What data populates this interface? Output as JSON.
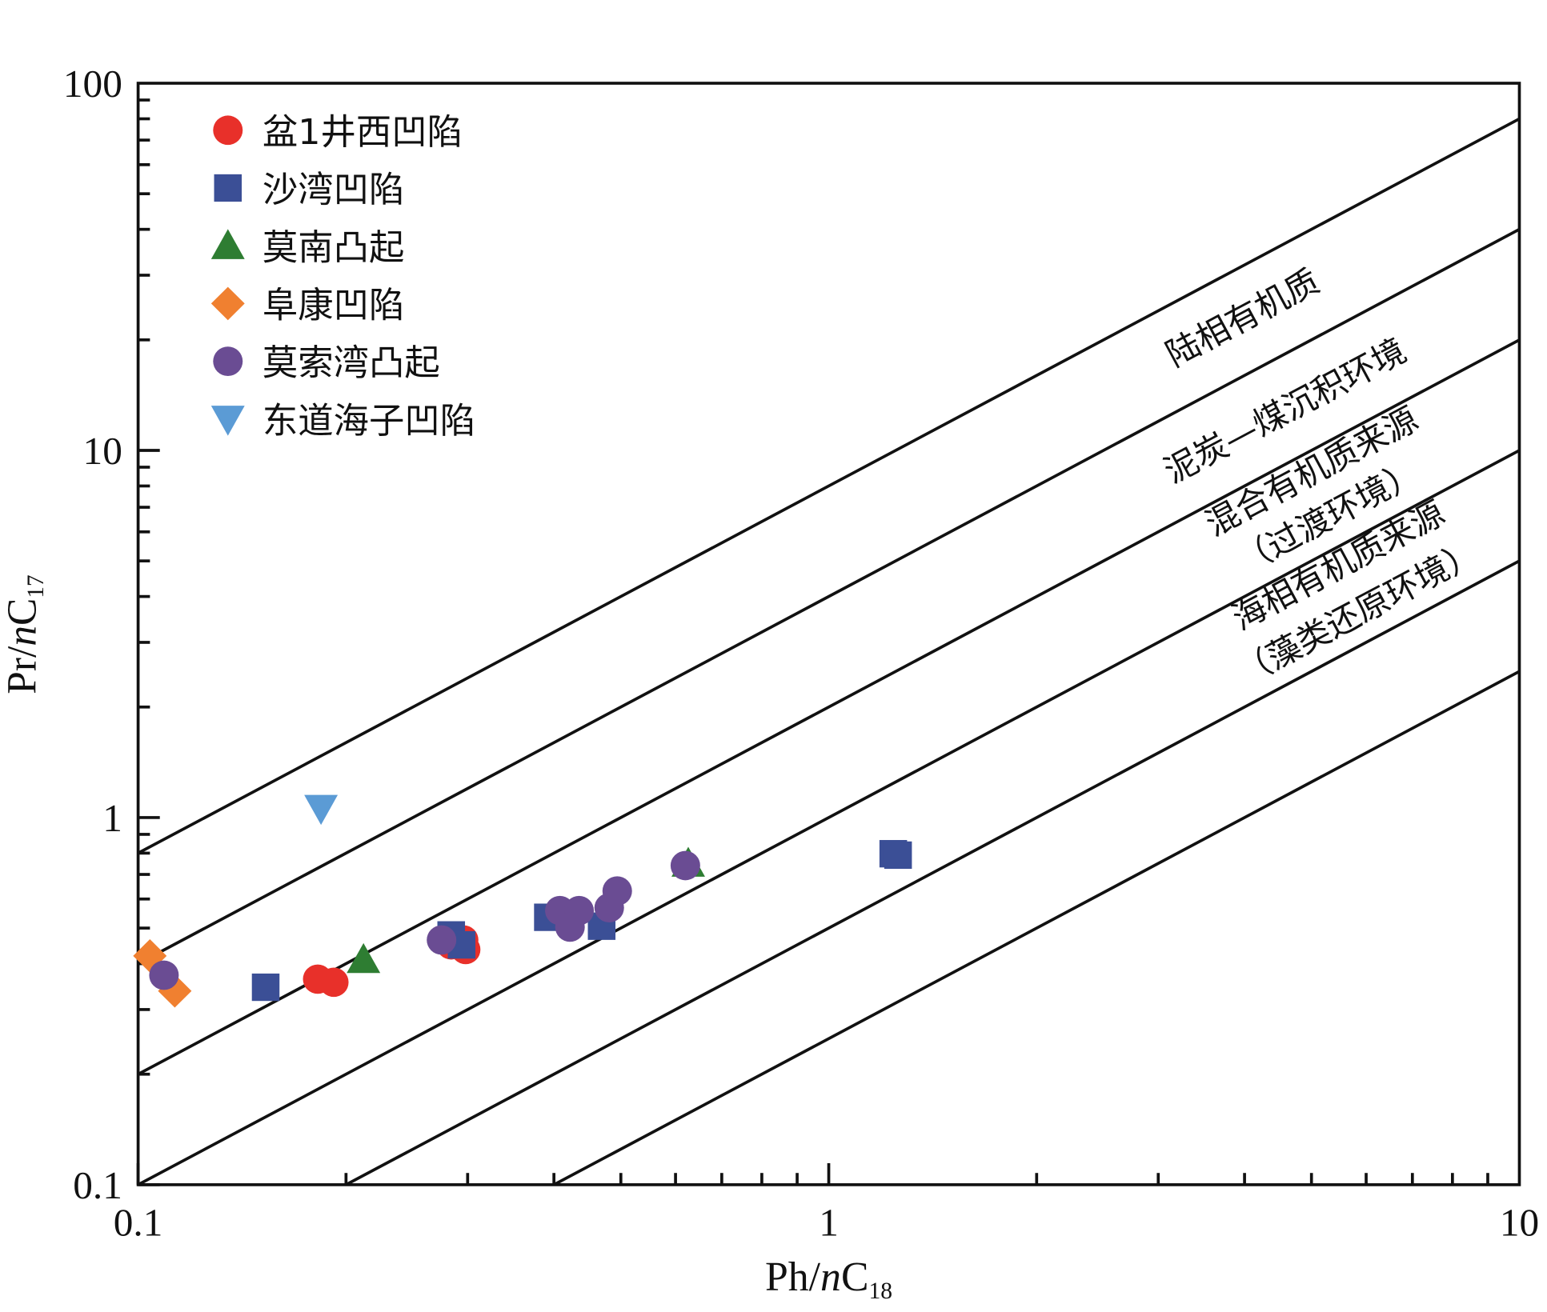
{
  "chart_data": {
    "type": "scatter",
    "x_scale": "log",
    "y_scale": "log",
    "xlim": [
      0.1,
      10
    ],
    "ylim": [
      0.1,
      100
    ],
    "xlabel": {
      "main": "Ph/",
      "italic": "n",
      "c": "C",
      "sub": "18"
    },
    "ylabel": {
      "main": "Pr/",
      "italic": "n",
      "c": "C",
      "sub": "17"
    },
    "x_ticks": [
      {
        "v": 0.1,
        "label": "0.1"
      },
      {
        "v": 1,
        "label": "1"
      },
      {
        "v": 10,
        "label": "10"
      }
    ],
    "y_ticks": [
      {
        "v": 0.1,
        "label": "0.1"
      },
      {
        "v": 1,
        "label": "1"
      },
      {
        "v": 10,
        "label": "10"
      },
      {
        "v": 100,
        "label": "100"
      }
    ],
    "grid": false,
    "legend_position": "top-left",
    "reference_lines": [
      {
        "ratio": 8
      },
      {
        "ratio": 4
      },
      {
        "ratio": 2
      },
      {
        "ratio": 1
      },
      {
        "ratio": 0.5
      },
      {
        "ratio": 0.25
      }
    ],
    "annotations": [
      {
        "text": "陆相有机质"
      },
      {
        "text": "泥炭—煤沉积环境"
      },
      {
        "text": "混合有机质来源"
      },
      {
        "text": "（过渡环境）"
      },
      {
        "text": "海相有机质来源"
      },
      {
        "text": "（藻类还原环境）"
      }
    ],
    "series": [
      {
        "name": "盆1井西凹陷",
        "marker": "circle",
        "color": "#e8302a",
        "points": [
          [
            0.182,
            0.363
          ],
          [
            0.192,
            0.356
          ],
          [
            0.284,
            0.45
          ],
          [
            0.298,
            0.437
          ],
          [
            0.296,
            0.464
          ]
        ]
      },
      {
        "name": "沙湾凹陷",
        "marker": "square",
        "color": "#3b4f96",
        "points": [
          [
            0.153,
            0.345
          ],
          [
            0.284,
            0.479
          ],
          [
            0.294,
            0.45
          ],
          [
            0.392,
            0.535
          ],
          [
            0.469,
            0.506
          ],
          [
            1.24,
            0.797
          ],
          [
            1.26,
            0.79
          ]
        ]
      },
      {
        "name": "莫南凸起",
        "marker": "triangle-up",
        "color": "#2e7d32",
        "points": [
          [
            0.212,
            0.41
          ],
          [
            0.626,
            0.75
          ]
        ]
      },
      {
        "name": "阜康凹陷",
        "marker": "diamond",
        "color": "#f08030",
        "points": [
          [
            0.104,
            0.42
          ],
          [
            0.113,
            0.337
          ]
        ]
      },
      {
        "name": "莫索湾凸起",
        "marker": "circle",
        "color": "#6a4c93",
        "points": [
          [
            0.109,
            0.372
          ],
          [
            0.275,
            0.464
          ],
          [
            0.408,
            0.558
          ],
          [
            0.435,
            0.558
          ],
          [
            0.422,
            0.503
          ],
          [
            0.481,
            0.568
          ],
          [
            0.494,
            0.631
          ],
          [
            0.62,
            0.74
          ]
        ]
      },
      {
        "name": "东道海子凹陷",
        "marker": "triangle-down",
        "color": "#5b9bd5",
        "points": [
          [
            0.184,
            1.06
          ]
        ]
      }
    ]
  }
}
